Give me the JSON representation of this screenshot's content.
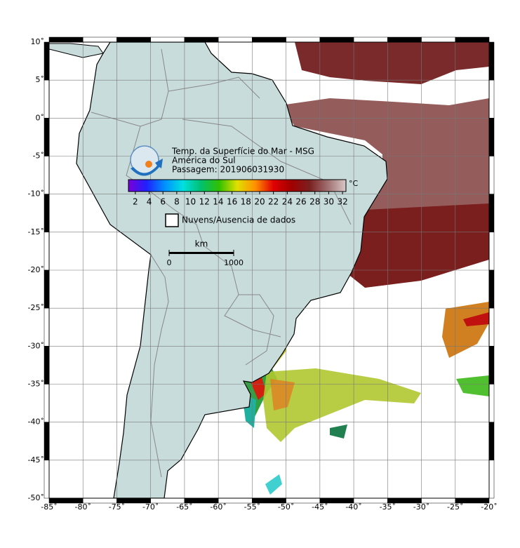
{
  "map": {
    "xlim": [
      -85,
      -20
    ],
    "ylim": [
      -50,
      10
    ],
    "xticks": [
      {
        "value": -85,
        "label": "-85˚"
      },
      {
        "value": -80,
        "label": "-80˚"
      },
      {
        "value": -75,
        "label": "-75˚"
      },
      {
        "value": -70,
        "label": "-70˚"
      },
      {
        "value": -65,
        "label": "-65˚"
      },
      {
        "value": -60,
        "label": "-60˚"
      },
      {
        "value": -55,
        "label": "-55˚"
      },
      {
        "value": -50,
        "label": "-50˚"
      },
      {
        "value": -45,
        "label": "-45˚"
      },
      {
        "value": -40,
        "label": "-40˚"
      },
      {
        "value": -35,
        "label": "-35˚"
      },
      {
        "value": -30,
        "label": "-30˚"
      },
      {
        "value": -25,
        "label": "-25˚"
      },
      {
        "value": -20,
        "label": "-20˚"
      }
    ],
    "yticks": [
      {
        "value": 10,
        "label": "10˚"
      },
      {
        "value": 5,
        "label": "5˚"
      },
      {
        "value": 0,
        "label": "0˚"
      },
      {
        "value": -5,
        "label": "-5˚"
      },
      {
        "value": -10,
        "label": "-10˚"
      },
      {
        "value": -15,
        "label": "-15˚"
      },
      {
        "value": -20,
        "label": "-20˚"
      },
      {
        "value": -25,
        "label": "-25˚"
      },
      {
        "value": -30,
        "label": "-30˚"
      },
      {
        "value": -35,
        "label": "-35˚"
      },
      {
        "value": -40,
        "label": "-40˚"
      },
      {
        "value": -45,
        "label": "-45˚"
      },
      {
        "value": -50,
        "label": "-50˚"
      }
    ],
    "grid": true
  },
  "legend": {
    "title_lines": [
      "Temp. da Superfície do Mar - MSG",
      "América do Sul",
      "Passagem: 201906031930"
    ],
    "colorbar": {
      "lim": [
        1,
        32.5
      ],
      "ticks": [
        2,
        4,
        6,
        8,
        10,
        12,
        14,
        16,
        18,
        20,
        22,
        24,
        26,
        28,
        30,
        32
      ],
      "unit": "°C",
      "colors": [
        "#7a00d8",
        "#2020ff",
        "#0090ff",
        "#00e0e0",
        "#00c070",
        "#30c000",
        "#e0e000",
        "#ff9000",
        "#e00000",
        "#a00000",
        "#7a2020",
        "#a07070",
        "#d8c8c8"
      ]
    },
    "no_data": "Nuvens/Ausencia de dados",
    "scale_bar": {
      "unit": "km",
      "ticks": [
        0,
        1000
      ]
    }
  }
}
